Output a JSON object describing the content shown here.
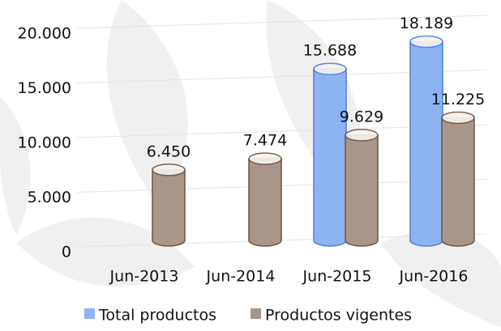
{
  "chart_data": {
    "type": "bar",
    "categories": [
      "Jun-2013",
      "Jun-2014",
      "Jun-2015",
      "Jun-2016"
    ],
    "series": [
      {
        "name": "Total productos",
        "color": "#8db3f2",
        "values": [
          null,
          null,
          15688,
          18189
        ],
        "value_labels": [
          null,
          null,
          "15.688",
          "18.189"
        ]
      },
      {
        "name": "Productos vigentes",
        "color": "#a8968a",
        "values": [
          6450,
          7474,
          9629,
          11225
        ],
        "value_labels": [
          "6.450",
          "7.474",
          "9.629",
          "11.225"
        ]
      }
    ],
    "ylim": [
      0,
      22000
    ],
    "yticks": [
      0,
      {
        "value": 5000,
        "label": "5.000"
      },
      {
        "value": 10000,
        "label": "10.000"
      },
      {
        "value": 15000,
        "label": "15.000"
      },
      {
        "value": 20000,
        "label": "20.000"
      }
    ],
    "grid": true,
    "legend": "bottom"
  }
}
